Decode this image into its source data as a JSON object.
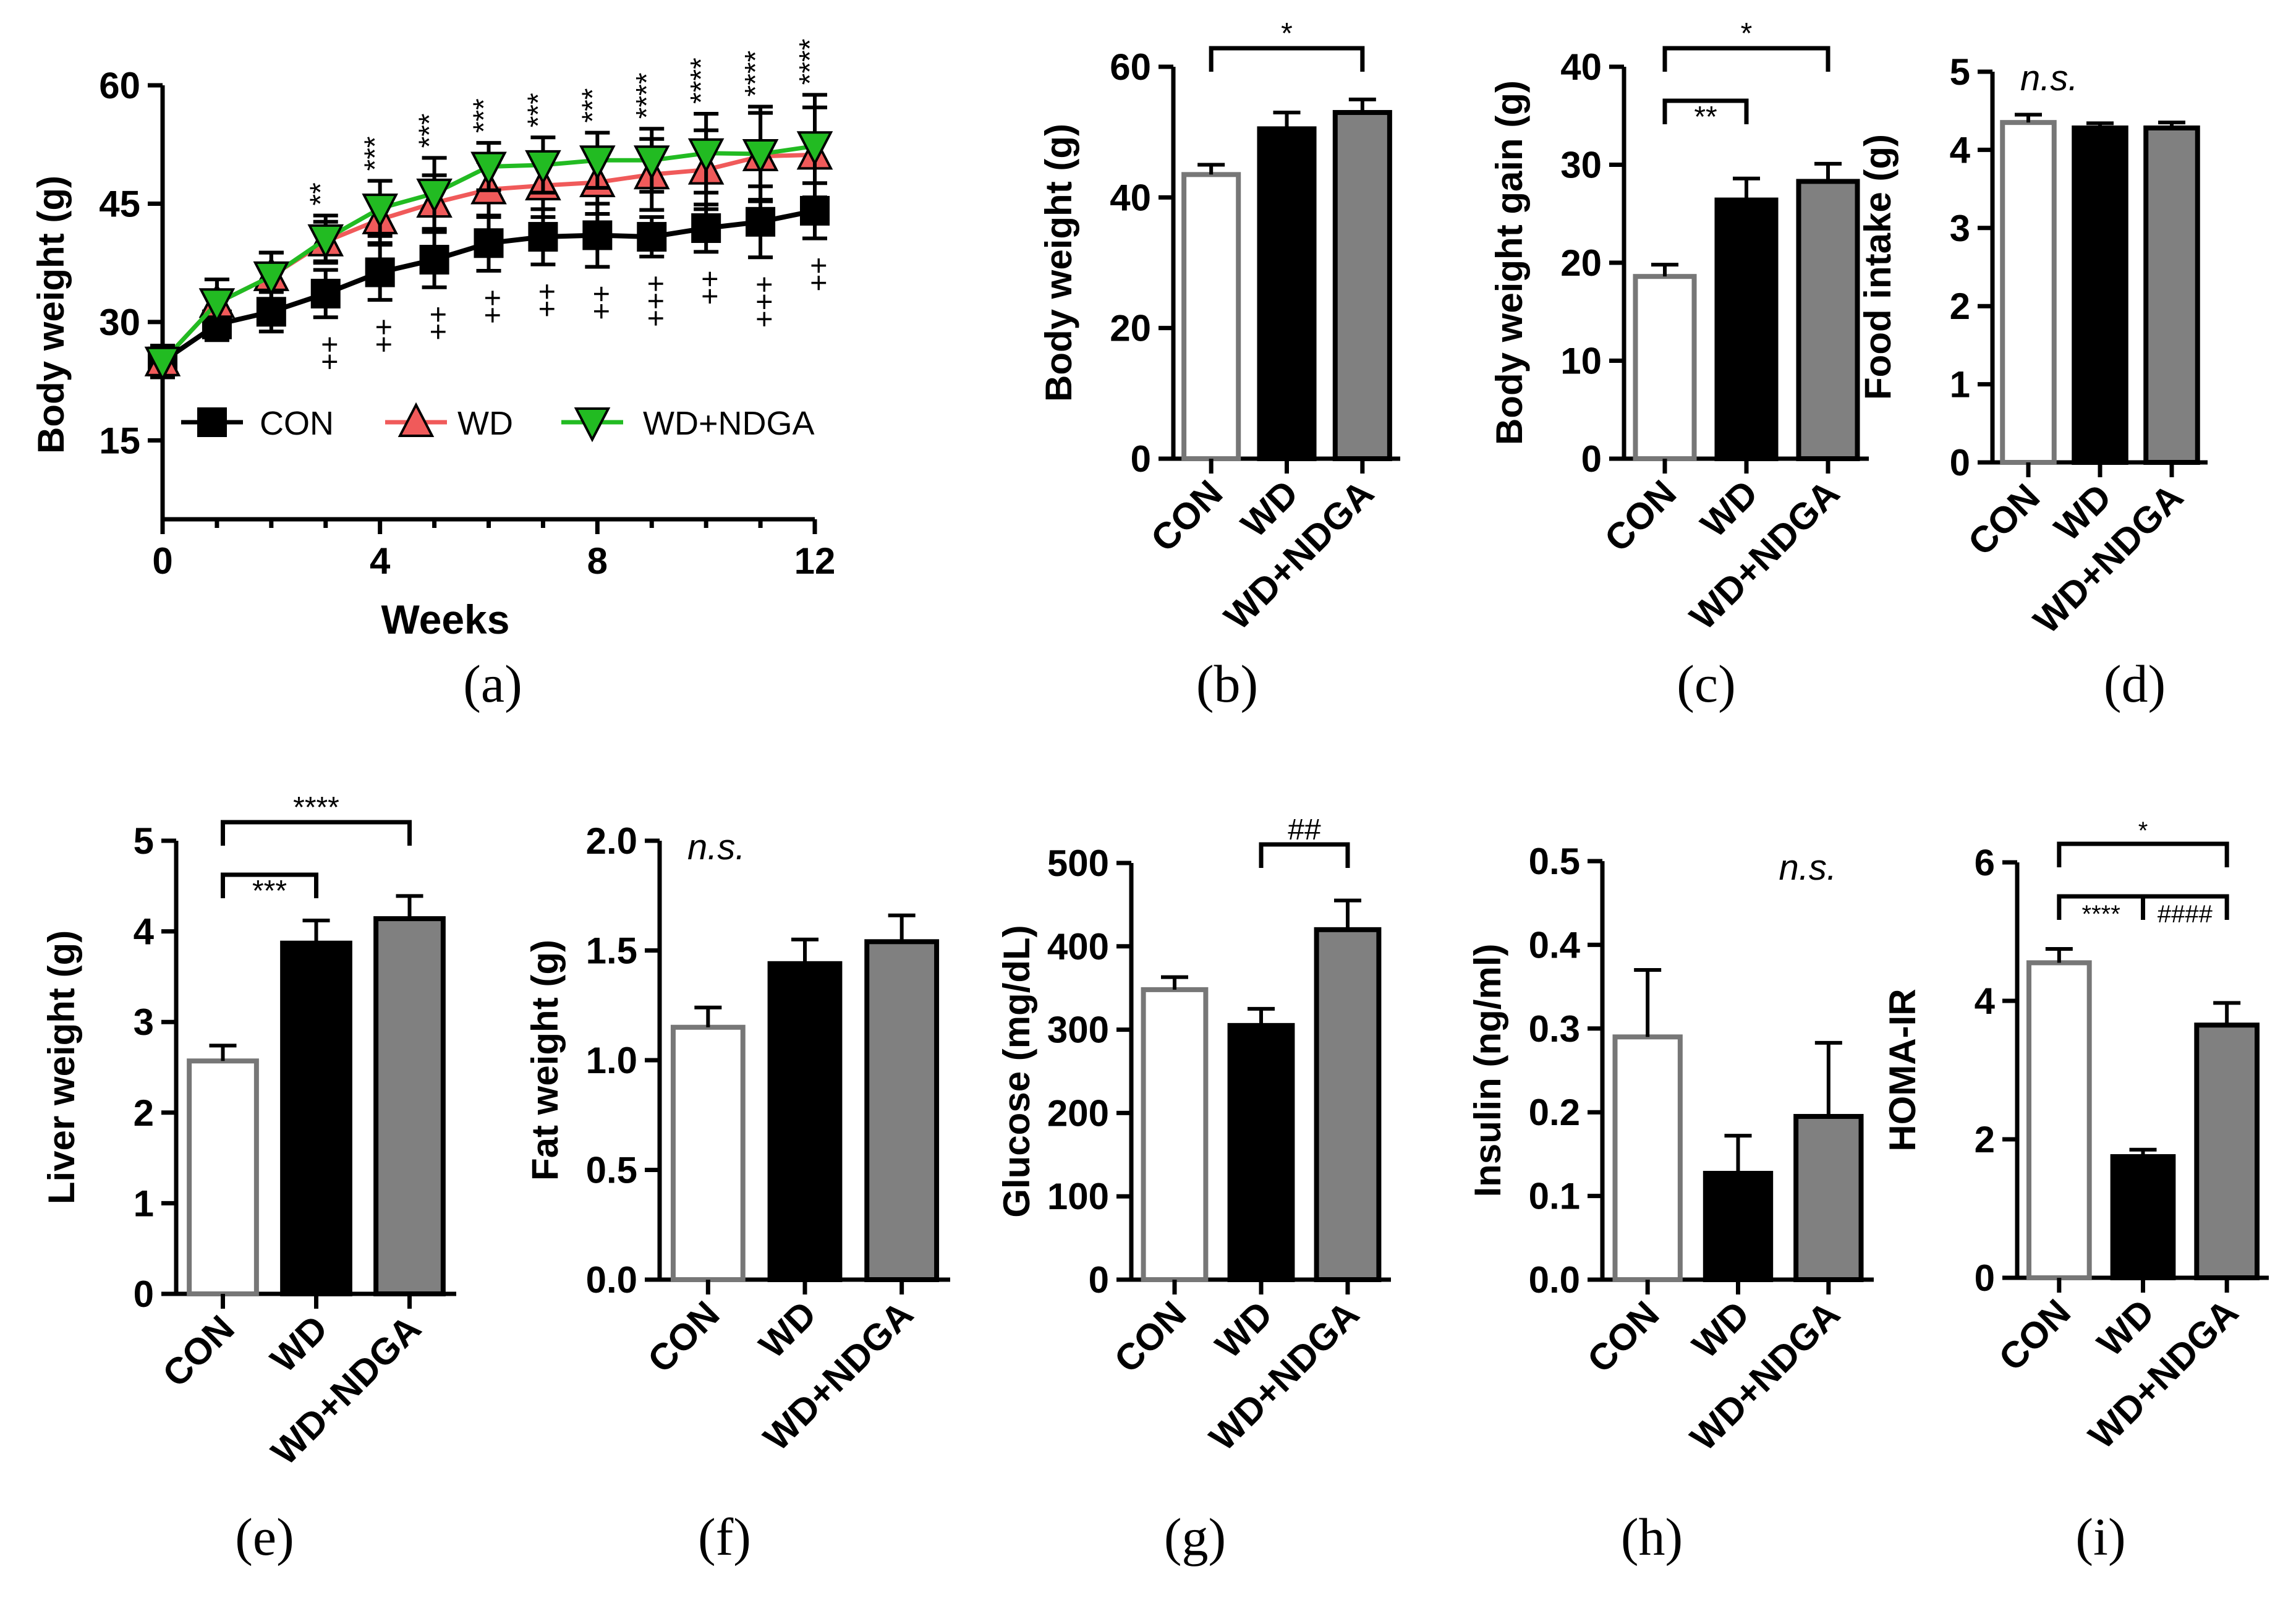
{
  "colors": {
    "CON": "#ffffff",
    "CON_edge": "#777777",
    "WD": "#000000",
    "WD_NDGA": "#808080",
    "line_CON": "#000000",
    "line_WD": "#f05a5a",
    "line_WD_NDGA": "#22bb22"
  },
  "chart_data": [
    {
      "id": "a",
      "type": "line",
      "panel_label": "(a)",
      "xlabel": "Weeks",
      "ylabel": "Body weight (g)",
      "xlim": [
        0,
        12
      ],
      "ylim": [
        5,
        60
      ],
      "xticks": [
        0,
        4,
        8,
        12
      ],
      "yticks": [
        15,
        30,
        45,
        60
      ],
      "x": [
        0,
        1,
        2,
        3,
        4,
        5,
        6,
        7,
        8,
        9,
        10,
        11,
        12
      ],
      "series": [
        {
          "name": "CON",
          "values": [
            25,
            29.7,
            31.3,
            33.6,
            36.3,
            37.9,
            40,
            40.8,
            41,
            40.8,
            41.9,
            42.7,
            44.1
          ],
          "errors": [
            2,
            2,
            2.5,
            3,
            3.5,
            3.5,
            3.5,
            3.5,
            4,
            2.5,
            3,
            4.5,
            3.5
          ]
        },
        {
          "name": "WD",
          "values": [
            25,
            32.4,
            35.8,
            40.2,
            43,
            45.1,
            46.8,
            47.3,
            47.7,
            48.7,
            49.3,
            51,
            51.2
          ],
          "errors": [
            2,
            3,
            3,
            2.5,
            3,
            3.5,
            3.5,
            4,
            4,
            4.5,
            5,
            5.5,
            6
          ]
        },
        {
          "name": "WD+NDGA",
          "values": [
            25,
            32.4,
            35.8,
            40.5,
            44.4,
            46.3,
            49.7,
            49.9,
            50.5,
            50.5,
            51.4,
            51.3,
            52.3
          ],
          "errors": [
            2,
            3,
            3,
            3,
            3.5,
            4.5,
            3,
            3.5,
            3.5,
            4,
            5,
            6,
            6.5
          ]
        }
      ],
      "annotations_top": [
        {
          "x": 3,
          "text": "**"
        },
        {
          "x": 4,
          "text": "***"
        },
        {
          "x": 5,
          "text": "***"
        },
        {
          "x": 6,
          "text": "***"
        },
        {
          "x": 7,
          "text": "***"
        },
        {
          "x": 8,
          "text": "***"
        },
        {
          "x": 9,
          "text": "****"
        },
        {
          "x": 10,
          "text": "****"
        },
        {
          "x": 11,
          "text": "****"
        },
        {
          "x": 12,
          "text": "****"
        }
      ],
      "annotations_bottom": [
        {
          "x": 3,
          "text": "++"
        },
        {
          "x": 4,
          "text": "++"
        },
        {
          "x": 5,
          "text": "++"
        },
        {
          "x": 6,
          "text": "++"
        },
        {
          "x": 7,
          "text": "++"
        },
        {
          "x": 8,
          "text": "++"
        },
        {
          "x": 9,
          "text": "+++"
        },
        {
          "x": 10,
          "text": "++"
        },
        {
          "x": 11,
          "text": "+++"
        },
        {
          "x": 12,
          "text": "++"
        }
      ]
    },
    {
      "id": "b",
      "type": "bar",
      "panel_label": "(b)",
      "ylabel": "Body weight (g)",
      "categories": [
        "CON",
        "WD",
        "WD+NDGA"
      ],
      "values": [
        43.5,
        50.5,
        53
      ],
      "errors": [
        1.5,
        2.5,
        2
      ],
      "ylim": [
        0,
        60
      ],
      "yticks": [
        0,
        20,
        40,
        60
      ],
      "brackets": [
        {
          "from": 0,
          "to": 2,
          "text": "*",
          "level": 1
        }
      ]
    },
    {
      "id": "c",
      "type": "bar",
      "panel_label": "(c)",
      "ylabel": "Body weight gain (g)",
      "categories": [
        "CON",
        "WD",
        "WD+NDGA"
      ],
      "values": [
        18.6,
        26.4,
        28.3
      ],
      "errors": [
        1.2,
        2.2,
        1.8
      ],
      "ylim": [
        0,
        40
      ],
      "yticks": [
        0,
        10,
        20,
        30,
        40
      ],
      "brackets": [
        {
          "from": 0,
          "to": 1,
          "text": "**",
          "level": 1
        },
        {
          "from": 0,
          "to": 2,
          "text": "*",
          "level": 2
        }
      ]
    },
    {
      "id": "d",
      "type": "bar",
      "panel_label": "(d)",
      "ylabel": "Food intake (g)",
      "categories": [
        "CON",
        "WD",
        "WD+NDGA"
      ],
      "values": [
        4.35,
        4.28,
        4.28
      ],
      "errors": [
        0.1,
        0.06,
        0.07
      ],
      "ylim": [
        0,
        5
      ],
      "yticks": [
        0,
        1,
        2,
        3,
        4,
        5
      ],
      "note": "n.s.",
      "note_pos": "left",
      "brackets": []
    },
    {
      "id": "e",
      "type": "bar",
      "panel_label": "(e)",
      "ylabel": "Liver weight (g)",
      "categories": [
        "CON",
        "WD",
        "WD+NDGA"
      ],
      "values": [
        2.57,
        3.87,
        4.14
      ],
      "errors": [
        0.17,
        0.25,
        0.25
      ],
      "ylim": [
        0,
        5
      ],
      "yticks": [
        0,
        1,
        2,
        3,
        4,
        5
      ],
      "brackets": [
        {
          "from": 0,
          "to": 1,
          "text": "***",
          "level": 1
        },
        {
          "from": 0,
          "to": 2,
          "text": "****",
          "level": 2
        }
      ]
    },
    {
      "id": "f",
      "type": "bar",
      "panel_label": "(f)",
      "ylabel": "Fat weight (g)",
      "categories": [
        "CON",
        "WD",
        "WD+NDGA"
      ],
      "values": [
        1.15,
        1.44,
        1.54
      ],
      "errors": [
        0.09,
        0.11,
        0.12
      ],
      "ylim": [
        0,
        2.0
      ],
      "yticks": [
        0,
        0.5,
        1.0,
        1.5,
        2.0
      ],
      "ytick_labels": [
        "0.0",
        "0.5",
        "1.0",
        "1.5",
        "2.0"
      ],
      "note": "n.s.",
      "note_pos": "left",
      "brackets": []
    },
    {
      "id": "g",
      "type": "bar",
      "panel_label": "(g)",
      "ylabel": "Glucose (mg/dL)",
      "categories": [
        "CON",
        "WD",
        "WD+NDGA"
      ],
      "values": [
        348,
        305,
        420
      ],
      "errors": [
        15,
        20,
        35
      ],
      "ylim": [
        0,
        500
      ],
      "yticks": [
        0,
        100,
        200,
        300,
        400,
        500
      ],
      "brackets": [
        {
          "from": 1,
          "to": 2,
          "text": "##",
          "level": 1
        }
      ]
    },
    {
      "id": "h",
      "type": "bar",
      "panel_label": "(h)",
      "ylabel": "Insulin (ng/ml)",
      "categories": [
        "CON",
        "WD",
        "WD+NDGA"
      ],
      "values": [
        0.29,
        0.127,
        0.195
      ],
      "errors": [
        0.08,
        0.045,
        0.088
      ],
      "ylim": [
        0,
        0.5
      ],
      "yticks": [
        0,
        0.1,
        0.2,
        0.3,
        0.4,
        0.5
      ],
      "ytick_labels": [
        "0.0",
        "0.1",
        "0.2",
        "0.3",
        "0.4",
        "0.5"
      ],
      "note": "n.s.",
      "note_pos": "right",
      "brackets": []
    },
    {
      "id": "i",
      "type": "bar",
      "panel_label": "(i)",
      "ylabel": "HOMA-IR",
      "categories": [
        "CON",
        "WD",
        "WD+NDGA"
      ],
      "values": [
        4.55,
        1.75,
        3.65
      ],
      "errors": [
        0.2,
        0.1,
        0.32
      ],
      "ylim": [
        0,
        6
      ],
      "yticks": [
        0,
        2,
        4,
        6
      ],
      "brackets": [
        {
          "from": 0,
          "to": 1,
          "text": "****",
          "level": 1
        },
        {
          "from": 1,
          "to": 2,
          "text": "####",
          "level": 1
        },
        {
          "from": 0,
          "to": 2,
          "text": "*",
          "level": 2
        }
      ]
    }
  ]
}
